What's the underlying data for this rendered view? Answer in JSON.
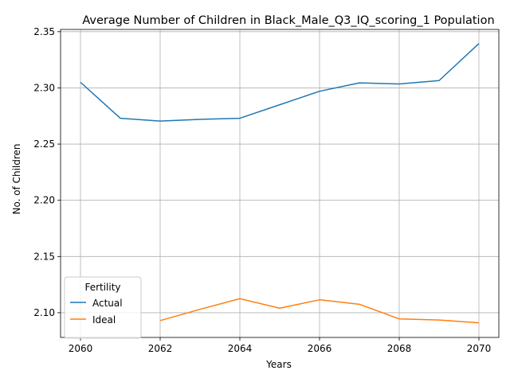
{
  "chart_data": {
    "type": "line",
    "title": "Average Number of Children in Black_Male_Q3_IQ_scoring_1 Population",
    "xlabel": "Years",
    "ylabel": "No. of Children",
    "xlim": [
      2059.5,
      2070.5
    ],
    "ylim": [
      2.078,
      2.352
    ],
    "xticks": [
      2060,
      2062,
      2064,
      2066,
      2068,
      2070
    ],
    "yticks": [
      2.1,
      2.15,
      2.2,
      2.25,
      2.3,
      2.35
    ],
    "xtick_labels": [
      "2060",
      "2062",
      "2064",
      "2066",
      "2068",
      "2070"
    ],
    "ytick_labels": [
      "2.10",
      "2.15",
      "2.20",
      "2.25",
      "2.30",
      "2.35"
    ],
    "grid": true,
    "legend": {
      "title": "Fertility",
      "placement": "lower-left"
    },
    "series": [
      {
        "name": "Actual",
        "color": "#1f77b4",
        "x": [
          2060,
          2061,
          2062,
          2063,
          2064,
          2065,
          2066,
          2067,
          2068,
          2069,
          2070
        ],
        "values": [
          2.305,
          2.273,
          2.2705,
          2.272,
          2.273,
          2.285,
          2.297,
          2.3045,
          2.3035,
          2.3065,
          2.3395
        ]
      },
      {
        "name": "Ideal",
        "color": "#ff7f0e",
        "x": [
          2062,
          2063,
          2064,
          2065,
          2066,
          2067,
          2068,
          2069,
          2070
        ],
        "values": [
          2.093,
          2.103,
          2.1125,
          2.104,
          2.1115,
          2.1075,
          2.0945,
          2.0935,
          2.091
        ]
      }
    ]
  }
}
